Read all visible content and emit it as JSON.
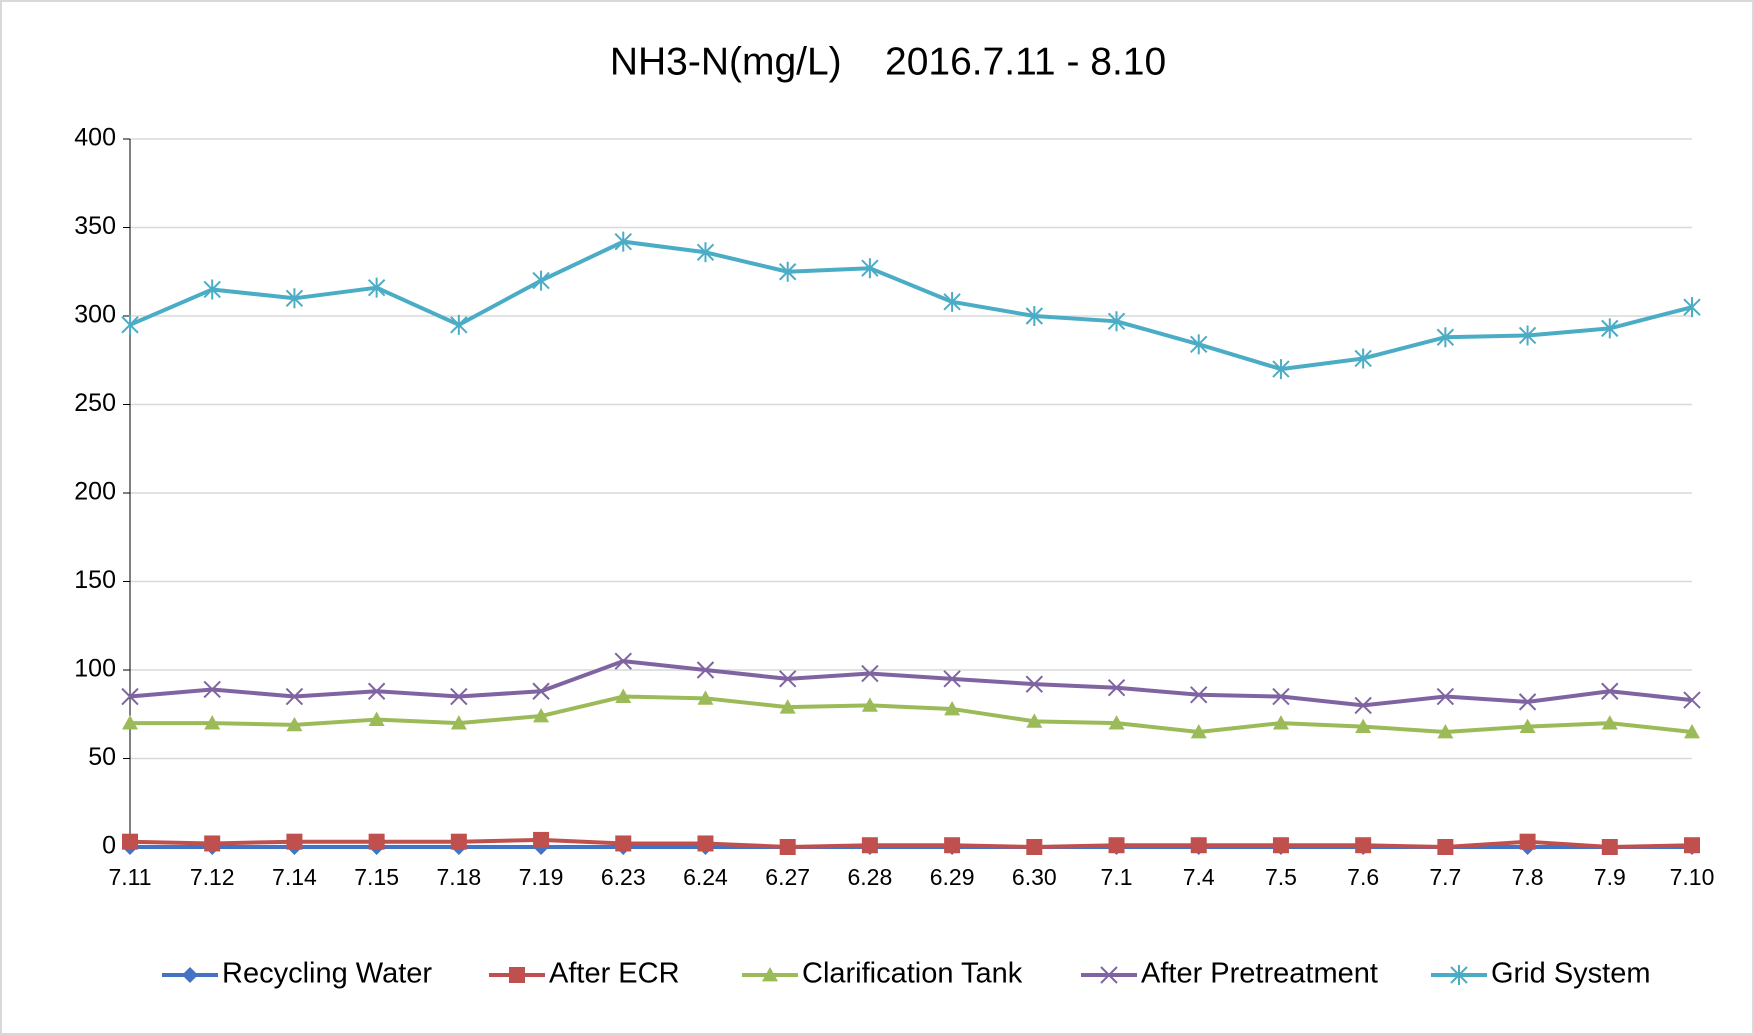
{
  "chart_data": {
    "type": "line",
    "title": "NH3-N(mg/L)    2016.7.11 - 8.10",
    "categories": [
      "7.11",
      "7.12",
      "7.14",
      "7.15",
      "7.18",
      "7.19",
      "6.23",
      "6.24",
      "6.27",
      "6.28",
      "6.29",
      "6.30",
      "7.1",
      "7.4",
      "7.5",
      "7.6",
      "7.7",
      "7.8",
      "7.9",
      "7.10"
    ],
    "series": [
      {
        "name": "Recycling Water",
        "color": "#4472c4",
        "marker": "diamond",
        "values": [
          0,
          0,
          0,
          0,
          0,
          0,
          0,
          0,
          0,
          0,
          0,
          0,
          0,
          0,
          0,
          0,
          0,
          0,
          0,
          0
        ]
      },
      {
        "name": "After ECR",
        "color": "#c0504d",
        "marker": "square",
        "values": [
          3,
          2,
          3,
          3,
          3,
          4,
          2,
          2,
          0,
          1,
          1,
          0,
          1,
          1,
          1,
          1,
          0,
          3,
          0,
          1
        ]
      },
      {
        "name": "Clarification Tank",
        "color": "#9bbb59",
        "marker": "triangle",
        "values": [
          70,
          70,
          69,
          72,
          70,
          74,
          85,
          84,
          79,
          80,
          78,
          71,
          70,
          65,
          70,
          68,
          65,
          68,
          70,
          65
        ]
      },
      {
        "name": "After Pretreatment",
        "color": "#8064a2",
        "marker": "x",
        "values": [
          85,
          89,
          85,
          88,
          85,
          88,
          105,
          100,
          95,
          98,
          95,
          92,
          90,
          86,
          85,
          80,
          85,
          82,
          88,
          83
        ]
      },
      {
        "name": "Grid System",
        "color": "#4bacc6",
        "marker": "star",
        "values": [
          295,
          315,
          310,
          316,
          295,
          320,
          342,
          336,
          325,
          327,
          308,
          300,
          297,
          284,
          270,
          276,
          288,
          289,
          293,
          305
        ]
      }
    ],
    "ylim": [
      0,
      400
    ],
    "yticks": [
      0,
      50,
      100,
      150,
      200,
      250,
      300,
      350,
      400
    ],
    "grid": true,
    "legend": "bottom"
  }
}
